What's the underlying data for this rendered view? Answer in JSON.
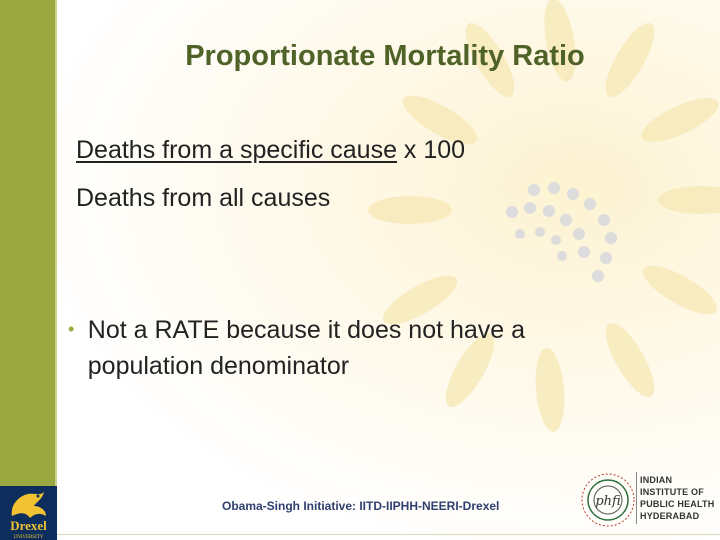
{
  "slide": {
    "title": "Proportionate Mortality Ratio",
    "formula": {
      "numerator": "Deaths from a specific cause",
      "multiplier": " x 100",
      "denominator": "Deaths from all causes"
    },
    "bullets": [
      {
        "marker": "•",
        "text": "Not a RATE because it does not have a population denominator"
      }
    ],
    "footer": "Obama-Singh Initiative: IITD-IIPHH-NEERI-Drexel"
  },
  "logos": {
    "drexel": {
      "word": "Drexel",
      "sub": "UNIVERSITY"
    },
    "iiph": {
      "mark": "phfi",
      "lines": [
        "INDIAN",
        "INSTITUTE OF",
        "PUBLIC HEALTH",
        "HYDERABAD"
      ]
    }
  },
  "colors": {
    "accent": "#9aa841",
    "title": "#4f6228",
    "footer": "#2f3f6f"
  }
}
